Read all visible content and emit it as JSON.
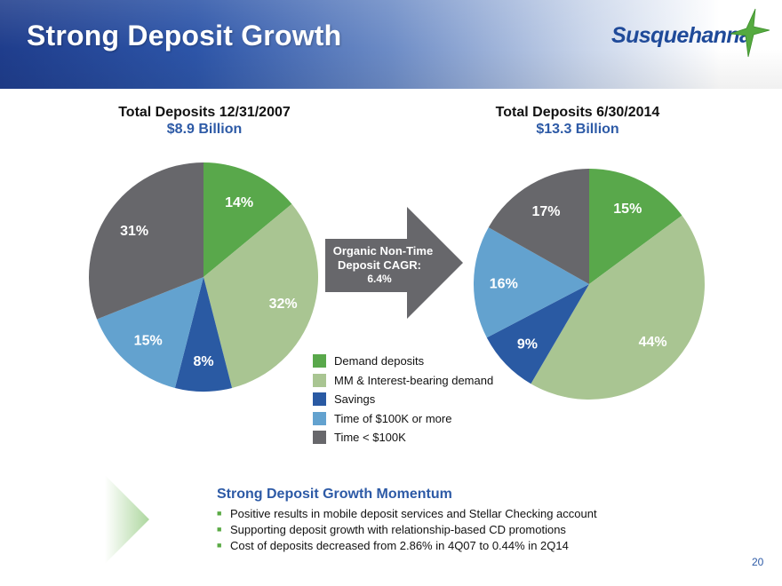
{
  "header": {
    "title": "Strong Deposit Growth",
    "logo_text": "Susquehanna"
  },
  "legend": [
    {
      "label": "Demand deposits",
      "color": "#59a84b"
    },
    {
      "label": "MM & Interest-bearing demand",
      "color": "#a9c592"
    },
    {
      "label": "Savings",
      "color": "#2a5aa3"
    },
    {
      "label": "Time of $100K or more",
      "color": "#63a2cf"
    },
    {
      "label": "Time < $100K",
      "color": "#67676b"
    }
  ],
  "arrow": {
    "line1": "Organic Non-Time",
    "line2": "Deposit CAGR:",
    "line3": "6.4%"
  },
  "chart_data": [
    {
      "type": "pie",
      "title": "Total Deposits 12/31/2007",
      "subtitle": "$8.9 Billion",
      "categories": [
        "Demand deposits",
        "MM & Interest-bearing demand",
        "Savings",
        "Time of $100K or more",
        "Time < $100K"
      ],
      "values": [
        14,
        32,
        8,
        15,
        31
      ],
      "labels": [
        "14%",
        "32%",
        "8%",
        "15%",
        "31%"
      ],
      "colors": [
        "#59a84b",
        "#a9c592",
        "#2a5aa3",
        "#63a2cf",
        "#67676b"
      ]
    },
    {
      "type": "pie",
      "title": "Total Deposits 6/30/2014",
      "subtitle": "$13.3 Billion",
      "categories": [
        "Demand deposits",
        "MM & Interest-bearing demand",
        "Savings",
        "Time of $100K or more",
        "Time < $100K"
      ],
      "values": [
        15,
        44,
        9,
        16,
        17
      ],
      "labels": [
        "15%",
        "44%",
        "9%",
        "16%",
        "17%"
      ],
      "colors": [
        "#59a84b",
        "#a9c592",
        "#2a5aa3",
        "#63a2cf",
        "#67676b"
      ]
    }
  ],
  "momentum": {
    "title": "Strong Deposit Growth Momentum",
    "bullet_mark": "■",
    "bullets": [
      "Positive results in mobile deposit services and Stellar Checking account",
      "Supporting deposit growth with relationship-based CD promotions",
      "Cost of deposits decreased from 2.86% in 4Q07 to 0.44% in 2Q14"
    ]
  },
  "page_number": "20"
}
